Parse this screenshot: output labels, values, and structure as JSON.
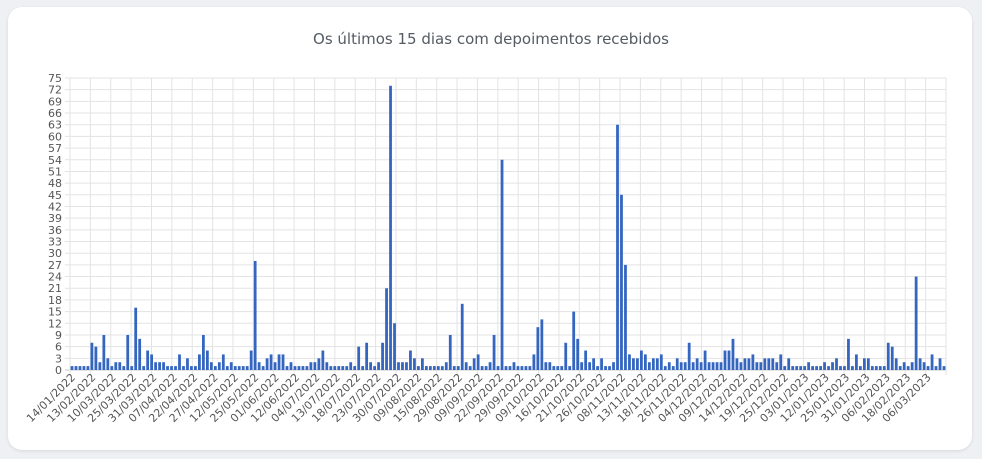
{
  "chart_data": {
    "type": "bar",
    "title": "Os últimos 15 dias com depoimentos recebidos",
    "ylim": [
      0,
      75
    ],
    "y_ticks": [
      0,
      3,
      6,
      9,
      12,
      15,
      18,
      21,
      24,
      27,
      30,
      33,
      36,
      39,
      42,
      45,
      48,
      51,
      54,
      57,
      60,
      63,
      66,
      69,
      72,
      75
    ],
    "grid": true,
    "legend": "none",
    "bar_color": "#3466c0",
    "x_tick_labels": [
      "14/01/2022",
      "13/02/2022",
      "10/03/2022",
      "25/03/2022",
      "31/03/2022",
      "07/04/2022",
      "22/04/2022",
      "27/04/2022",
      "12/05/2022",
      "25/05/2022",
      "01/06/2022",
      "12/06/2022",
      "04/07/2022",
      "13/07/2022",
      "18/07/2022",
      "23/07/2022",
      "30/07/2022",
      "09/08/2022",
      "15/08/2022",
      "29/08/2022",
      "09/09/2022",
      "22/09/2022",
      "29/09/2022",
      "09/10/2022",
      "16/10/2022",
      "21/10/2022",
      "26/10/2022",
      "08/11/2022",
      "13/11/2022",
      "18/11/2022",
      "26/11/2022",
      "04/12/2022",
      "09/12/2022",
      "14/12/2022",
      "19/12/2022",
      "25/12/2022",
      "03/01/2023",
      "12/01/2023",
      "25/01/2023",
      "31/01/2023",
      "06/02/2023",
      "18/02/2023",
      "06/03/2023"
    ],
    "values": [
      1,
      1,
      1,
      1,
      1,
      7,
      6,
      2,
      9,
      3,
      1,
      2,
      2,
      1,
      9,
      1,
      16,
      8,
      1,
      5,
      4,
      2,
      2,
      2,
      1,
      1,
      1,
      4,
      1,
      3,
      1,
      1,
      4,
      9,
      5,
      2,
      1,
      2,
      4,
      1,
      2,
      1,
      1,
      1,
      1,
      5,
      28,
      2,
      1,
      3,
      4,
      2,
      4,
      4,
      1,
      2,
      1,
      1,
      1,
      1,
      2,
      2,
      3,
      5,
      2,
      1,
      1,
      1,
      1,
      1,
      2,
      1,
      6,
      1,
      7,
      2,
      1,
      2,
      7,
      21,
      73,
      12,
      2,
      2,
      2,
      5,
      3,
      1,
      3,
      1,
      1,
      1,
      1,
      1,
      2,
      9,
      1,
      1,
      17,
      2,
      1,
      3,
      4,
      1,
      1,
      2,
      9,
      1,
      54,
      1,
      1,
      2,
      1,
      1,
      1,
      1,
      4,
      11,
      13,
      2,
      2,
      1,
      1,
      1,
      7,
      1,
      15,
      8,
      2,
      5,
      2,
      3,
      1,
      3,
      1,
      1,
      2,
      63,
      45,
      27,
      4,
      3,
      3,
      5,
      4,
      2,
      3,
      3,
      4,
      1,
      2,
      1,
      3,
      2,
      2,
      7,
      2,
      3,
      2,
      5,
      2,
      2,
      2,
      2,
      5,
      5,
      8,
      3,
      2,
      3,
      3,
      4,
      2,
      2,
      3,
      3,
      3,
      2,
      4,
      1,
      3,
      1,
      1,
      1,
      1,
      2,
      1,
      1,
      1,
      2,
      1,
      2,
      3,
      1,
      1,
      8,
      1,
      4,
      1,
      3,
      3,
      1,
      1,
      1,
      1,
      7,
      6,
      3,
      1,
      2,
      1,
      2,
      24,
      3,
      2,
      1,
      4,
      1,
      3,
      1
    ]
  }
}
